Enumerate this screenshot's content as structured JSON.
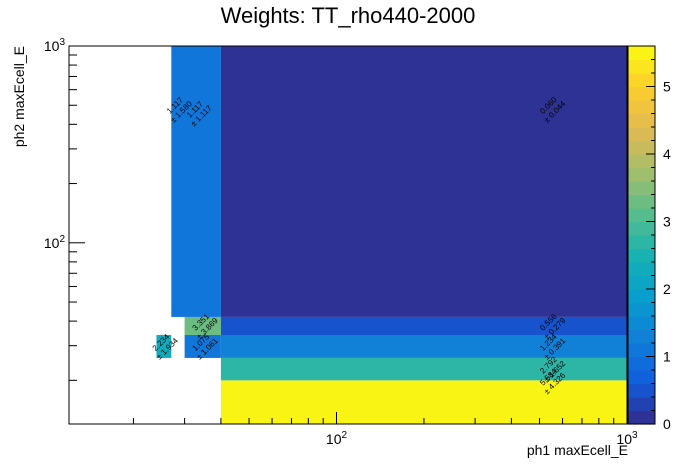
{
  "chart_data": {
    "type": "heatmap",
    "title": "Weights: TT_rho440-2000",
    "xlabel": "ph1 maxEcell_E",
    "ylabel": "ph2 maxEcell_E",
    "x_scale": "log",
    "y_scale": "log",
    "xlim": [
      12,
      1000
    ],
    "ylim": [
      12,
      1000
    ],
    "x_ticks": [
      {
        "value": 100,
        "base": "10",
        "exp": "2"
      },
      {
        "value": 1000,
        "base": "10",
        "exp": "3"
      }
    ],
    "y_ticks": [
      {
        "value": 100,
        "base": "10",
        "exp": "2"
      },
      {
        "value": 1000,
        "base": "10",
        "exp": "3"
      }
    ],
    "z_range": [
      0,
      5.6
    ],
    "z_ticks": [
      {
        "value": 0,
        "label": "0"
      },
      {
        "value": 1,
        "label": "1"
      },
      {
        "value": 2,
        "label": "2"
      },
      {
        "value": 3,
        "label": "3"
      },
      {
        "value": 4,
        "label": "4"
      },
      {
        "value": 5,
        "label": "5"
      }
    ],
    "cells": [
      {
        "x0": 40,
        "x1": 1000,
        "y0": 12,
        "y1": 20,
        "value": 5.584,
        "value_label": "5.584",
        "error_label": "± 4.326"
      },
      {
        "x0": 40,
        "x1": 1000,
        "y0": 20,
        "y1": 26,
        "value": 2.792,
        "value_label": "2.792",
        "error_label": "± 1.652"
      },
      {
        "x0": 30,
        "x1": 40,
        "y0": 26,
        "y1": 34,
        "value": 1.075,
        "value_label": "1.075",
        "error_label": "± 1.061"
      },
      {
        "x0": 40,
        "x1": 1000,
        "y0": 26,
        "y1": 34,
        "value": 1.234,
        "value_label": "1.234",
        "error_label": "± 0.391"
      },
      {
        "x0": 24,
        "x1": 27,
        "y0": 26,
        "y1": 34,
        "value": 2.234,
        "value_label": "2.234",
        "error_label": "± 1.934"
      },
      {
        "x0": 30,
        "x1": 40,
        "y0": 34,
        "y1": 42,
        "value": 3.351,
        "value_label": "3.351",
        "error_label": "± 3.869"
      },
      {
        "x0": 40,
        "x1": 1000,
        "y0": 34,
        "y1": 42,
        "value": 0.556,
        "value_label": "0.556",
        "error_label": "± 0.279"
      },
      {
        "x0": 27,
        "x1": 40,
        "y0": 42,
        "y1": 1000,
        "value": 1.117,
        "value_label": "1.117",
        "error_label": "± 1.580",
        "value_label2": "1.117",
        "error_label2": "± 1.117"
      },
      {
        "x0": 40,
        "x1": 1000,
        "y0": 42,
        "y1": 1000,
        "value": 0.06,
        "value_label": "0.060",
        "error_label": "± 0.044"
      }
    ],
    "label_rows": [
      {
        "cell": 0,
        "y": 20,
        "x": 550
      },
      {
        "cell": 1,
        "y": 23,
        "x": 550
      },
      {
        "cell": 2,
        "y": 30,
        "x": 35
      },
      {
        "cell": 3,
        "y": 30,
        "x": 550
      },
      {
        "cell": 4,
        "y": 30,
        "x": 25.5
      },
      {
        "cell": 5,
        "y": 38,
        "x": 35
      },
      {
        "cell": 6,
        "y": 38,
        "x": 550
      },
      {
        "cell": 7,
        "y": 480,
        "x": 28.5
      },
      {
        "cell": 8,
        "y": 480,
        "x": 550
      }
    ],
    "grid": false,
    "legend": "none",
    "colorbar": "right"
  }
}
